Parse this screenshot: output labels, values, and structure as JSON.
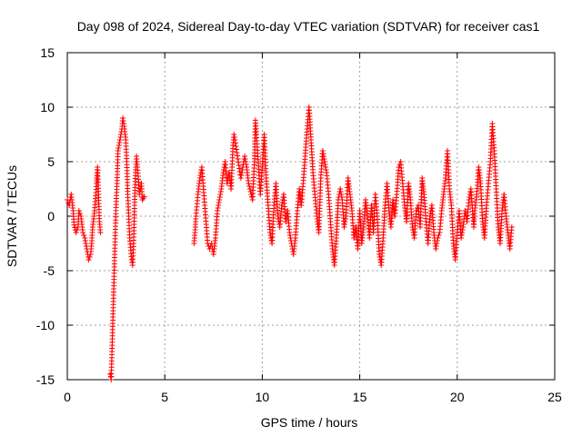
{
  "chart_data": {
    "type": "scatter",
    "title": "Day 098 of 2024, Sidereal Day-to-day VTEC variation (SDTVAR) for receiver cas1",
    "xlabel": "GPS time / hours",
    "ylabel": "SDTVAR / TECUs",
    "xlim": [
      0,
      25
    ],
    "ylim": [
      -15,
      15
    ],
    "xticks": [
      0,
      5,
      10,
      15,
      20,
      25
    ],
    "yticks": [
      -15,
      -10,
      -5,
      0,
      5,
      10,
      15
    ],
    "grid": true,
    "marker": "+",
    "series_color": "#ff0000",
    "segments": [
      [
        0.0,
        1.5
      ],
      [
        0.1,
        1.0
      ],
      [
        0.2,
        2.0
      ],
      [
        0.3,
        0.5
      ],
      [
        0.35,
        -0.8
      ],
      [
        0.45,
        -1.5
      ],
      [
        0.55,
        -1.0
      ],
      [
        0.6,
        0.5
      ],
      [
        0.7,
        0.0
      ],
      [
        0.8,
        -1.5
      ],
      [
        0.9,
        -2.0
      ],
      [
        1.0,
        -3.0
      ],
      [
        1.1,
        -4.0
      ],
      [
        1.2,
        -3.5
      ],
      [
        1.25,
        -2.5
      ],
      [
        1.3,
        -1.0
      ],
      [
        1.4,
        0.5
      ],
      [
        1.5,
        3.0
      ],
      [
        1.55,
        4.5
      ],
      [
        1.6,
        2.0
      ],
      [
        1.65,
        -0.5
      ],
      [
        1.7,
        -1.5
      ],
      [
        2.2,
        -14.5
      ],
      [
        2.25,
        -15.0
      ],
      [
        2.5,
        0.8
      ],
      [
        2.55,
        3.0
      ],
      [
        2.6,
        6.0
      ],
      [
        2.7,
        7.0
      ],
      [
        2.8,
        8.0
      ],
      [
        2.85,
        9.0
      ],
      [
        2.9,
        8.5
      ],
      [
        3.0,
        7.0
      ],
      [
        3.05,
        5.0
      ],
      [
        3.1,
        2.0
      ],
      [
        3.15,
        0.0
      ],
      [
        3.2,
        -2.0
      ],
      [
        3.3,
        -4.0
      ],
      [
        3.35,
        -4.5
      ],
      [
        3.4,
        -2.5
      ],
      [
        3.45,
        1.0
      ],
      [
        3.5,
        4.0
      ],
      [
        3.55,
        5.5
      ],
      [
        3.6,
        4.5
      ],
      [
        3.7,
        2.0
      ],
      [
        3.8,
        3.0
      ],
      [
        3.85,
        1.5
      ],
      [
        3.95,
        1.8
      ],
      [
        6.5,
        -2.5
      ],
      [
        6.55,
        -1.5
      ],
      [
        6.6,
        0.0
      ],
      [
        6.7,
        2.0
      ],
      [
        6.8,
        3.5
      ],
      [
        6.9,
        4.5
      ],
      [
        7.2,
        -2.5
      ],
      [
        7.3,
        -3.0
      ],
      [
        7.4,
        -2.5
      ],
      [
        7.5,
        -3.5
      ],
      [
        7.6,
        -2.0
      ],
      [
        7.7,
        0.5
      ],
      [
        7.8,
        1.5
      ],
      [
        7.9,
        2.5
      ],
      [
        8.0,
        4.0
      ],
      [
        8.1,
        5.0
      ],
      [
        8.2,
        3.0
      ],
      [
        8.3,
        4.0
      ],
      [
        8.4,
        2.5
      ],
      [
        8.5,
        6.5
      ],
      [
        8.55,
        7.5
      ],
      [
        8.6,
        7.0
      ],
      [
        8.9,
        3.5
      ],
      [
        9.0,
        4.5
      ],
      [
        9.1,
        5.5
      ],
      [
        9.2,
        4.5
      ],
      [
        9.3,
        3.0
      ],
      [
        9.5,
        1.5
      ],
      [
        9.6,
        5.0
      ],
      [
        9.65,
        8.8
      ],
      [
        9.7,
        7.5
      ],
      [
        9.9,
        2.0
      ],
      [
        10.0,
        4.5
      ],
      [
        10.1,
        7.5
      ],
      [
        10.2,
        3.5
      ],
      [
        10.3,
        1.0
      ],
      [
        10.4,
        -1.5
      ],
      [
        10.5,
        -2.5
      ],
      [
        10.6,
        1.0
      ],
      [
        10.7,
        3.0
      ],
      [
        10.8,
        0.0
      ],
      [
        10.9,
        -1.0
      ],
      [
        11.0,
        1.0
      ],
      [
        11.1,
        2.0
      ],
      [
        11.2,
        -0.5
      ],
      [
        11.3,
        0.5
      ],
      [
        11.4,
        -1.5
      ],
      [
        11.5,
        -2.5
      ],
      [
        11.6,
        -3.5
      ],
      [
        11.7,
        -2.0
      ],
      [
        11.8,
        0.5
      ],
      [
        11.9,
        2.5
      ],
      [
        12.0,
        1.0
      ],
      [
        12.1,
        3.0
      ],
      [
        12.2,
        5.5
      ],
      [
        12.3,
        8.0
      ],
      [
        12.4,
        10.0
      ],
      [
        12.5,
        7.0
      ],
      [
        12.6,
        4.0
      ],
      [
        12.7,
        2.0
      ],
      [
        12.8,
        0.0
      ],
      [
        12.9,
        -1.5
      ],
      [
        13.0,
        3.5
      ],
      [
        13.1,
        6.0
      ],
      [
        13.2,
        5.0
      ],
      [
        13.3,
        4.0
      ],
      [
        13.4,
        2.0
      ],
      [
        13.5,
        -0.5
      ],
      [
        13.6,
        -3.0
      ],
      [
        13.7,
        -4.5
      ],
      [
        13.8,
        -2.0
      ],
      [
        13.9,
        1.5
      ],
      [
        14.0,
        2.5
      ],
      [
        14.1,
        1.5
      ],
      [
        14.2,
        -1.0
      ],
      [
        14.3,
        0.0
      ],
      [
        14.4,
        3.5
      ],
      [
        14.5,
        2.0
      ],
      [
        14.6,
        0.5
      ],
      [
        14.7,
        -2.0
      ],
      [
        14.8,
        -1.0
      ],
      [
        14.9,
        -3.0
      ],
      [
        15.0,
        0.5
      ],
      [
        15.1,
        -2.5
      ],
      [
        15.2,
        -1.0
      ],
      [
        15.3,
        1.5
      ],
      [
        15.4,
        0.0
      ],
      [
        15.5,
        -2.0
      ],
      [
        15.6,
        1.0
      ],
      [
        15.7,
        -1.5
      ],
      [
        15.8,
        2.0
      ],
      [
        15.9,
        0.0
      ],
      [
        16.0,
        -3.5
      ],
      [
        16.1,
        -4.5
      ],
      [
        16.2,
        -2.0
      ],
      [
        16.3,
        1.0
      ],
      [
        16.4,
        3.0
      ],
      [
        16.5,
        0.5
      ],
      [
        16.6,
        -1.0
      ],
      [
        16.7,
        1.5
      ],
      [
        16.8,
        0.0
      ],
      [
        16.9,
        2.0
      ],
      [
        17.0,
        4.5
      ],
      [
        17.1,
        5.0
      ],
      [
        17.2,
        3.0
      ],
      [
        17.3,
        1.0
      ],
      [
        17.4,
        -0.5
      ],
      [
        17.5,
        3.0
      ],
      [
        17.6,
        1.5
      ],
      [
        17.7,
        -1.0
      ],
      [
        17.8,
        -2.0
      ],
      [
        17.9,
        0.5
      ],
      [
        18.0,
        1.0
      ],
      [
        18.1,
        -1.0
      ],
      [
        18.2,
        3.5
      ],
      [
        18.3,
        2.0
      ],
      [
        18.4,
        -0.5
      ],
      [
        18.5,
        -2.5
      ],
      [
        18.6,
        0.0
      ],
      [
        18.7,
        1.0
      ],
      [
        18.8,
        -1.5
      ],
      [
        18.9,
        -3.0
      ],
      [
        19.0,
        -2.0
      ],
      [
        19.1,
        -1.5
      ],
      [
        19.2,
        0.5
      ],
      [
        19.3,
        2.0
      ],
      [
        19.4,
        3.5
      ],
      [
        19.5,
        6.0
      ],
      [
        19.6,
        2.5
      ],
      [
        19.7,
        1.0
      ],
      [
        19.8,
        -2.5
      ],
      [
        19.9,
        -4.0
      ],
      [
        20.0,
        -1.5
      ],
      [
        20.1,
        0.5
      ],
      [
        20.2,
        -2.0
      ],
      [
        20.3,
        -1.0
      ],
      [
        20.4,
        0.5
      ],
      [
        20.5,
        -0.5
      ],
      [
        20.6,
        1.5
      ],
      [
        20.7,
        2.5
      ],
      [
        20.85,
        -1.0
      ],
      [
        20.9,
        0.5
      ],
      [
        21.0,
        2.0
      ],
      [
        21.1,
        4.5
      ],
      [
        21.2,
        3.0
      ],
      [
        21.3,
        -0.5
      ],
      [
        21.4,
        -2.0
      ],
      [
        21.5,
        1.0
      ],
      [
        21.6,
        3.0
      ],
      [
        21.7,
        5.0
      ],
      [
        21.8,
        8.5
      ],
      [
        21.9,
        6.0
      ],
      [
        22.0,
        2.5
      ],
      [
        22.1,
        -1.0
      ],
      [
        22.2,
        -2.5
      ],
      [
        22.3,
        0.5
      ],
      [
        22.4,
        2.0
      ],
      [
        22.5,
        0.0
      ],
      [
        22.6,
        -1.5
      ],
      [
        22.7,
        -3.0
      ],
      [
        22.8,
        -1.0
      ]
    ]
  }
}
